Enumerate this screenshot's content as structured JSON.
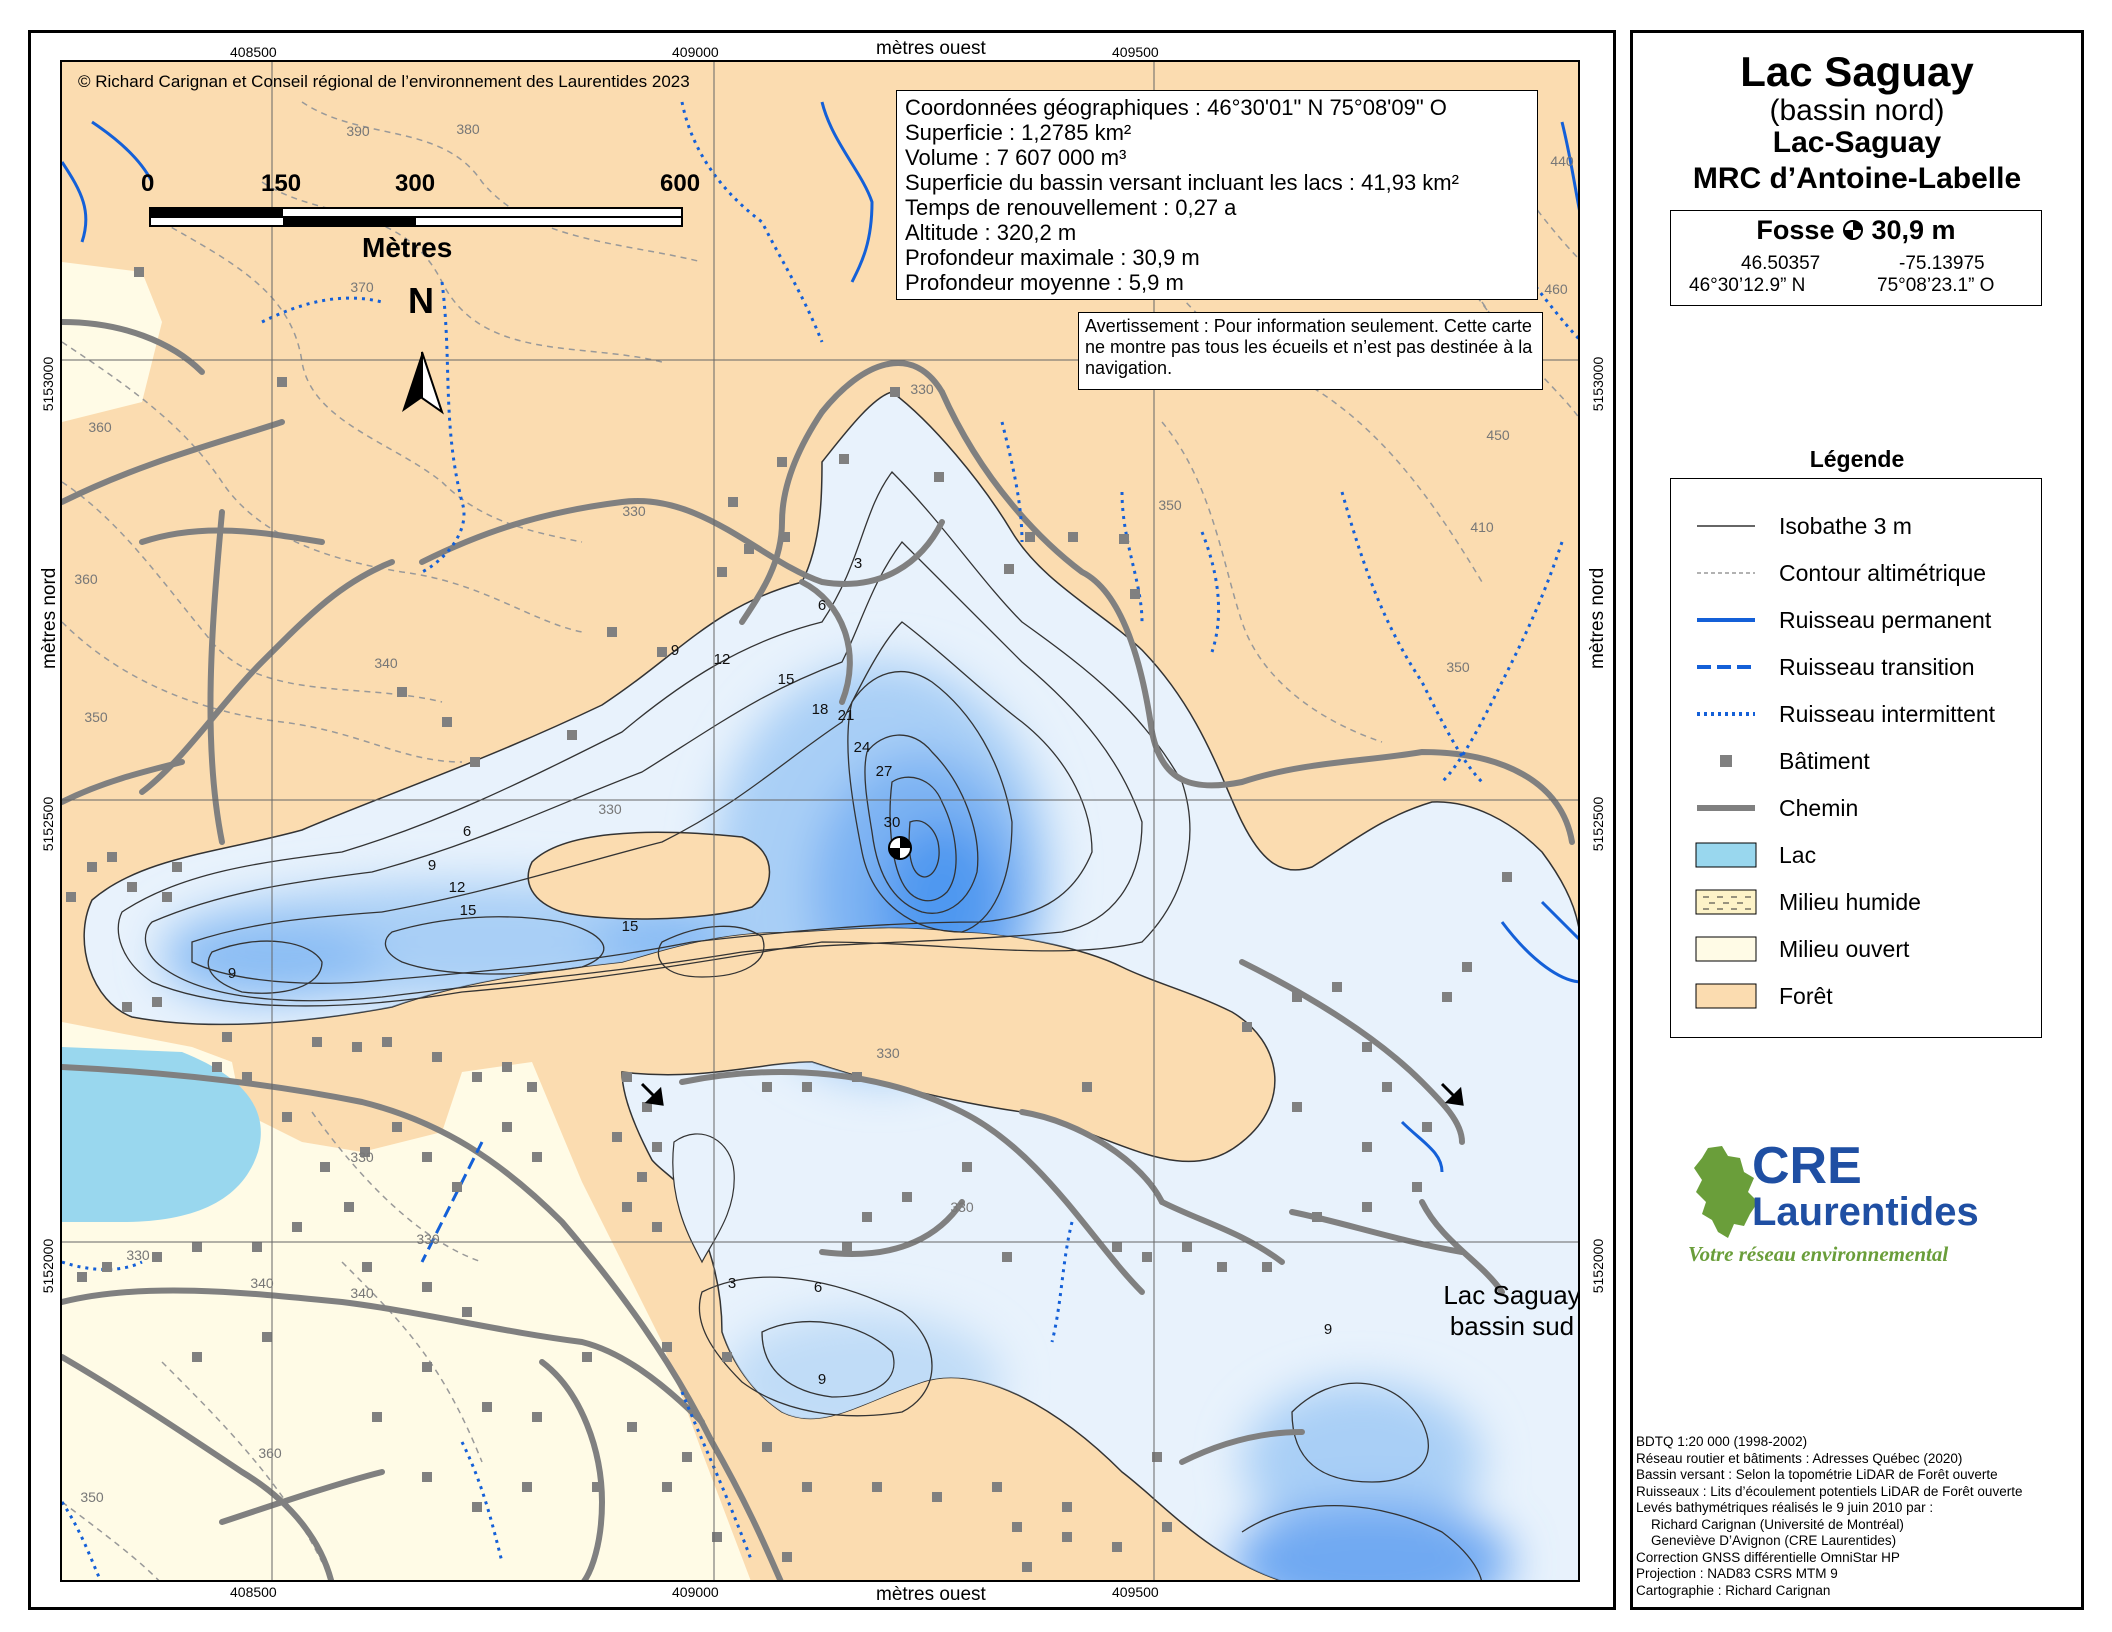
{
  "map": {
    "copyright": "© Richard Carignan et Conseil régional de l’environnement des Laurentides 2023",
    "axis_top_title": "mètres ouest",
    "axis_bottom_title": "mètres ouest",
    "axis_left_title": "mètres nord",
    "axis_right_title": "mètres nord",
    "x_ticks": [
      "408500",
      "409000",
      "409500"
    ],
    "y_ticks": [
      "5153000",
      "5152500",
      "5152000"
    ],
    "scale_bar": {
      "ticks": [
        "0",
        "150",
        "300",
        "600"
      ],
      "unit": "Mètres"
    },
    "north_label": "N",
    "info_lines": [
      "Coordonnées géographiques : 46°30'01\" N   75°08'09\" O",
      "Superficie : 1,2785 km²",
      "Volume : 7 607 000 m³",
      "Superficie du bassin versant incluant les lacs : 41,93 km²",
      "Temps de renouvellement : 0,27 a",
      "Altitude : 320,2 m",
      "Profondeur maximale : 30,9 m",
      "Profondeur moyenne : 5,9 m"
    ],
    "warning": "Avertissement : Pour information seulement. Cette carte ne montre pas tous les écueils et n’est pas destinée à la navigation.",
    "south_basin_label": "Lac Saguay bassin sud",
    "depth_labels": [
      "3",
      "6",
      "9",
      "12",
      "15",
      "18",
      "21",
      "24",
      "27",
      "30",
      "6",
      "9",
      "12",
      "15",
      "15",
      "9",
      "3",
      "6",
      "9",
      "9"
    ],
    "elevation_labels": [
      "390",
      "380",
      "370",
      "360",
      "360",
      "350",
      "340",
      "330",
      "330",
      "350",
      "410",
      "440",
      "450",
      "460",
      "330",
      "330",
      "330",
      "330",
      "330",
      "340",
      "350",
      "360",
      "350",
      "330",
      "340"
    ],
    "colors": {
      "forest": "#fbdcb0",
      "open": "#fffbe6",
      "lake_light": "#e8f2fc",
      "lake_deep": "#3f8ff0",
      "other_lake": "#99d7ee",
      "stream": "#1460d8",
      "road": "#808080",
      "building": "#808080"
    }
  },
  "title": {
    "name": "Lac Saguay",
    "subtitle": "(bassin nord)",
    "municipality": "Lac-Saguay",
    "mrc": "MRC d’Antoine-Labelle"
  },
  "fosse": {
    "label": "Fosse",
    "depth": "30,9 m",
    "lat_dec": "46.50357",
    "lon_dec": "-75.13975",
    "lat_dms": "46°30’12.9” N",
    "lon_dms": "75°08’23.1” O"
  },
  "legend": {
    "title": "Légende",
    "items": [
      {
        "label": "Isobathe 3 m",
        "symbol": "isobath-line"
      },
      {
        "label": "Contour altimétrique",
        "symbol": "contour-line"
      },
      {
        "label": "Ruisseau permanent",
        "symbol": "stream-solid"
      },
      {
        "label": "Ruisseau transition",
        "symbol": "stream-dashed"
      },
      {
        "label": "Ruisseau intermittent",
        "symbol": "stream-dotted"
      },
      {
        "label": "Bâtiment",
        "symbol": "building-square"
      },
      {
        "label": "Chemin",
        "symbol": "road-line"
      },
      {
        "label": "Lac",
        "symbol": "lake-fill"
      },
      {
        "label": "Milieu humide",
        "symbol": "wetland-fill"
      },
      {
        "label": "Milieu ouvert",
        "symbol": "open-fill"
      },
      {
        "label": "Forêt",
        "symbol": "forest-fill"
      }
    ]
  },
  "logo": {
    "line1": "CRE",
    "line2": "Laurentides",
    "tagline": "Votre réseau environnemental"
  },
  "credits": [
    "BDTQ 1:20 000 (1998-2002)",
    "Réseau routier et bâtiments : Adresses Québec (2020)",
    "Bassin versant : Selon la topométrie LiDAR de Forêt ouverte",
    "Ruisseaux : Lits d’écoulement potentiels LiDAR de Forêt ouverte",
    "Levés bathymétriques réalisés le 9 juin 2010 par :",
    "    Richard Carignan (Université de Montréal)",
    "    Geneviève D’Avignon (CRE Laurentides)",
    "Correction GNSS différentielle OmniStar HP",
    "Projection : NAD83 CSRS MTM 9",
    "Cartographie : Richard Carignan"
  ]
}
